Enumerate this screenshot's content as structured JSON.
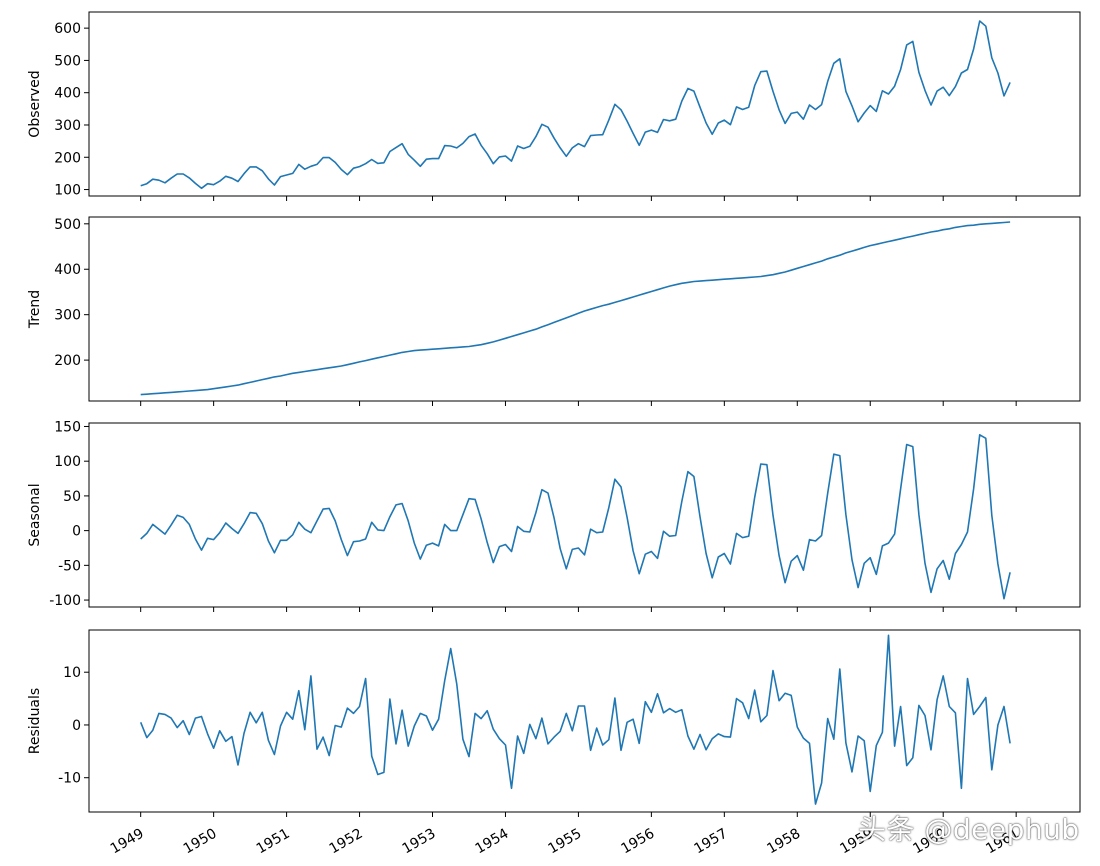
{
  "chart_data": {
    "type": "line",
    "line_color": "#1f77b4",
    "x_ticks": [
      "1949",
      "1950",
      "1951",
      "1952",
      "1953",
      "1954",
      "1955",
      "1956",
      "1957",
      "1958",
      "1959",
      "1960",
      "1961"
    ],
    "x_start": "1949-01",
    "x_end": "1960-12",
    "panels": [
      {
        "ylabel": "Observed",
        "ylim": [
          80,
          650
        ],
        "yticks": [
          100,
          200,
          300,
          400,
          500,
          600
        ],
        "values": [
          112,
          118,
          132,
          129,
          121,
          135,
          148,
          148,
          136,
          119,
          104,
          118,
          115,
          126,
          141,
          135,
          125,
          149,
          170,
          170,
          158,
          133,
          114,
          140,
          145,
          150,
          178,
          163,
          172,
          178,
          199,
          199,
          184,
          162,
          146,
          166,
          171,
          180,
          193,
          181,
          183,
          218,
          230,
          242,
          209,
          191,
          172,
          194,
          196,
          196,
          236,
          235,
          229,
          243,
          264,
          272,
          237,
          211,
          180,
          201,
          204,
          188,
          235,
          227,
          234,
          264,
          302,
          293,
          259,
          229,
          203,
          229,
          242,
          233,
          267,
          269,
          270,
          315,
          364,
          347,
          312,
          274,
          237,
          278,
          284,
          277,
          317,
          313,
          318,
          374,
          413,
          405,
          355,
          306,
          271,
          306,
          315,
          301,
          356,
          348,
          355,
          422,
          465,
          467,
          404,
          347,
          305,
          336,
          340,
          318,
          362,
          348,
          363,
          435,
          491,
          505,
          404,
          359,
          310,
          337,
          360,
          342,
          406,
          396,
          420,
          472,
          548,
          559,
          463,
          407,
          362,
          405,
          417,
          391,
          419,
          461,
          472,
          535,
          622,
          606,
          508,
          461,
          390,
          432
        ]
      },
      {
        "ylabel": "Trend",
        "ylim": [
          110,
          515
        ],
        "yticks": [
          200,
          300,
          400,
          500
        ],
        "values": [
          124,
          125,
          126,
          127,
          128,
          129,
          130,
          131,
          132,
          133,
          134,
          135,
          137,
          139,
          141,
          143,
          145,
          148,
          151,
          154,
          157,
          160,
          163,
          165,
          168,
          171,
          173,
          175,
          177,
          179,
          181,
          183,
          185,
          187,
          190,
          193,
          196,
          199,
          202,
          205,
          208,
          211,
          214,
          217,
          219,
          221,
          222,
          223,
          224,
          225,
          226,
          227,
          228,
          229,
          230,
          232,
          234,
          237,
          240,
          244,
          248,
          252,
          256,
          260,
          264,
          268,
          273,
          278,
          283,
          288,
          293,
          298,
          303,
          308,
          312,
          316,
          320,
          323,
          327,
          331,
          335,
          339,
          343,
          347,
          351,
          355,
          359,
          363,
          366,
          369,
          371,
          373,
          374,
          375,
          376,
          377,
          378,
          379,
          380,
          381,
          382,
          383,
          384,
          386,
          388,
          391,
          394,
          398,
          402,
          406,
          410,
          414,
          418,
          423,
          427,
          431,
          436,
          440,
          444,
          448,
          452,
          455,
          458,
          461,
          464,
          467,
          470,
          473,
          476,
          479,
          482,
          484,
          487,
          489,
          492,
          494,
          496,
          497,
          499,
          500,
          501,
          502,
          503,
          504
        ]
      },
      {
        "ylabel": "Seasonal",
        "ylim": [
          -110,
          155
        ],
        "yticks": [
          -100,
          -50,
          0,
          50,
          100,
          150
        ],
        "values": [
          -12,
          -4,
          9,
          2,
          -5,
          8,
          22,
          19,
          9,
          -12,
          -28,
          -11,
          -13,
          -3,
          11,
          3,
          -4,
          10,
          26,
          25,
          10,
          -15,
          -32,
          -14,
          -14,
          -6,
          12,
          2,
          -3,
          14,
          31,
          32,
          14,
          -13,
          -36,
          -16,
          -15,
          -12,
          12,
          1,
          0,
          20,
          37,
          39,
          14,
          -18,
          -41,
          -21,
          -18,
          -22,
          9,
          0,
          0,
          23,
          46,
          45,
          17,
          -17,
          -46,
          -23,
          -20,
          -30,
          6,
          -1,
          -2,
          26,
          59,
          54,
          18,
          -26,
          -55,
          -27,
          -25,
          -35,
          2,
          -3,
          -2,
          33,
          74,
          63,
          19,
          -29,
          -62,
          -34,
          -30,
          -40,
          -1,
          -8,
          -7,
          42,
          85,
          78,
          20,
          -33,
          -68,
          -38,
          -33,
          -48,
          -4,
          -10,
          -8,
          48,
          96,
          95,
          22,
          -36,
          -75,
          -44,
          -36,
          -57,
          -13,
          -15,
          -7,
          54,
          110,
          108,
          23,
          -42,
          -82,
          -47,
          -39,
          -63,
          -22,
          -18,
          -5,
          60,
          124,
          121,
          23,
          -47,
          -89,
          -55,
          -43,
          -70,
          -33,
          -20,
          -2,
          60,
          138,
          133,
          22,
          -48,
          -98,
          -60
        ]
      },
      {
        "ylabel": "Residuals",
        "ylim": [
          -16.5,
          18
        ],
        "yticks": [
          -10,
          0,
          10
        ],
        "values": [
          0.5,
          -2.4,
          -1,
          2.2,
          2,
          1.3,
          -0.5,
          0.8,
          -1.8,
          1.3,
          1.6,
          -1.7,
          -4.4,
          -1.1,
          -3.1,
          -2.2,
          -7.6,
          -1.6,
          2.4,
          0.4,
          2.4,
          -2.9,
          -5.6,
          -0.2,
          2.4,
          1.1,
          6.5,
          -0.9,
          9.3,
          -4.6,
          -2.3,
          -5.8,
          -0.1,
          -0.4,
          3.2,
          2.2,
          3.5,
          8.8,
          -5.9,
          -9.4,
          -9,
          4.9,
          -3.6,
          2.8,
          -4,
          -0.2,
          2.2,
          1.7,
          -1,
          1.1,
          8.4,
          14.5,
          7.7,
          -2.7,
          -6,
          2.2,
          1.2,
          2.7,
          -0.8,
          -2.6,
          -3.8,
          -12,
          -2.1,
          -5.4,
          0.1,
          -2.6,
          1.3,
          -3.6,
          -2.3,
          -1.2,
          2.2,
          -1.1,
          3.6,
          3.6,
          -4.8,
          -0.6,
          -3.8,
          -2.8,
          5.1,
          -4.8,
          0.5,
          1.1,
          -3.5,
          4.4,
          2.4,
          5.9,
          2.3,
          3.1,
          2.4,
          2.9,
          -2.1,
          -4.6,
          -1.8,
          -4.7,
          -2.6,
          -1.7,
          -2.2,
          -2.3,
          5,
          4.2,
          1.2,
          6.6,
          0.6,
          1.8,
          10.3,
          4.6,
          6,
          5.6,
          -0.4,
          -2.5,
          -3.5,
          -15,
          -11,
          1.2,
          -2.7,
          10.6,
          -3.4,
          -8.9,
          -2.1,
          -3,
          -12.6,
          -3.9,
          -1.4,
          17,
          -4,
          3.5,
          -7.7,
          -6.2,
          3.7,
          1.8,
          -4.7,
          4.8,
          9.3,
          3.5,
          2.3,
          -12,
          8.8,
          2,
          3.5,
          5.2,
          -8.5,
          0,
          3.5,
          -3.5
        ]
      }
    ]
  },
  "watermark": "头条 @deephub"
}
